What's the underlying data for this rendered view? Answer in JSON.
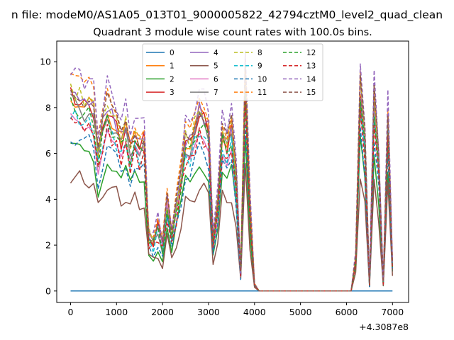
{
  "chart_data": {
    "type": "line",
    "suptitle": "n file: modeM0/AS1A05_013T01_9000005822_42794cztM0_level2_quad_clean",
    "title": "Quadrant 3 module wise count rates with 100.0s bins.",
    "xlabel": "",
    "ylabel": "",
    "x_offset_label": "+4.3087e8",
    "xlim": [
      -300,
      7350
    ],
    "ylim": [
      -0.5,
      10.9
    ],
    "xticks": [
      0,
      1000,
      2000,
      3000,
      4000,
      5000,
      6000,
      7000
    ],
    "yticks": [
      0,
      2,
      4,
      6,
      8,
      10
    ],
    "legend_position": "upper center",
    "legend_columns": 4,
    "grid": false,
    "series": [
      {
        "name": "0",
        "color": "#1f77b4",
        "dash": "solid",
        "points": [
          [
            0,
            0
          ],
          [
            7000,
            0
          ]
        ]
      },
      {
        "name": "1",
        "color": "#ff7f0e",
        "dash": "solid",
        "scale": 0.93
      },
      {
        "name": "2",
        "color": "#2ca02c",
        "dash": "solid",
        "scale": 0.68
      },
      {
        "name": "3",
        "color": "#d62728",
        "dash": "solid",
        "scale": 0.93
      },
      {
        "name": "4",
        "color": "#9467bd",
        "dash": "solid",
        "scale": 0.95
      },
      {
        "name": "5",
        "color": "#8c564b",
        "dash": "solid",
        "scale": 0.55
      },
      {
        "name": "6",
        "color": "#e377c2",
        "dash": "solid",
        "scale": 0.85
      },
      {
        "name": "7",
        "color": "#7f7f7f",
        "dash": "solid",
        "scale": 0.9
      },
      {
        "name": "8",
        "color": "#bcbd22",
        "dash": "dashed",
        "scale": 0.96
      },
      {
        "name": "9",
        "color": "#17becf",
        "dash": "dashed",
        "scale": 0.84
      },
      {
        "name": "10",
        "color": "#1f77b4",
        "dash": "dashed",
        "scale": 0.74
      },
      {
        "name": "11",
        "color": "#ff7f0e",
        "dash": "dashed",
        "scale": 1.02
      },
      {
        "name": "12",
        "color": "#2ca02c",
        "dash": "dashed",
        "scale": 0.88
      },
      {
        "name": "13",
        "color": "#d62728",
        "dash": "dashed",
        "scale": 0.82
      },
      {
        "name": "14",
        "color": "#9467bd",
        "dash": "dashed",
        "scale": 1.06
      },
      {
        "name": "15",
        "color": "#8c564b",
        "dash": "dashed",
        "scale": 0.97
      }
    ],
    "profile": {
      "x": [
        0,
        100,
        200,
        300,
        400,
        500,
        600,
        700,
        800,
        900,
        1000,
        1100,
        1200,
        1300,
        1400,
        1500,
        1600,
        1700,
        1800,
        1900,
        2000,
        2100,
        2200,
        2300,
        2400,
        2500,
        2600,
        2700,
        2800,
        2900,
        3000,
        3100,
        3200,
        3300,
        3400,
        3500,
        3600,
        3700,
        3800,
        3900,
        4000,
        4100,
        4200,
        5000,
        6000,
        6100,
        6200,
        6300,
        6400,
        6500,
        6600,
        6700,
        6800,
        6900,
        7000
      ],
      "y": [
        9.2,
        9.0,
        8.9,
        8.6,
        8.8,
        8.4,
        6.4,
        7.6,
        8.6,
        8.0,
        7.7,
        7.0,
        7.6,
        6.6,
        7.3,
        6.8,
        7.1,
        2.6,
        2.3,
        3.0,
        2.1,
        4.1,
        2.3,
        3.9,
        5.3,
        7.0,
        6.8,
        7.6,
        8.3,
        8.0,
        7.5,
        2.6,
        4.0,
        7.4,
        6.8,
        7.6,
        5.2,
        0.8,
        10.0,
        3.9,
        0.3,
        0.0,
        0.0,
        0.0,
        0.0,
        0.0,
        1.5,
        9.5,
        7.0,
        0.3,
        9.0,
        6.0,
        0.4,
        8.0,
        1.3
      ]
    }
  }
}
